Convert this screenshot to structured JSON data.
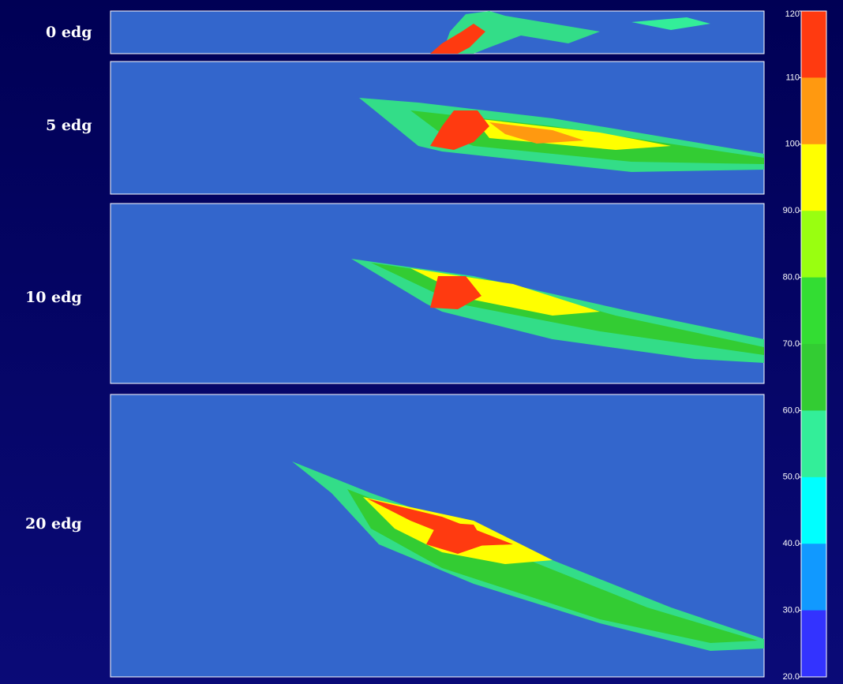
{
  "panels": [
    {
      "label": "0 edg"
    },
    {
      "label": "5 edg"
    },
    {
      "label": "10 edg"
    },
    {
      "label": "20 edg"
    }
  ],
  "colorbar": {
    "ticks": [
      {
        "value": 120,
        "label": "120"
      },
      {
        "value": 110,
        "label": "110"
      },
      {
        "value": 100,
        "label": "100"
      },
      {
        "value": 90,
        "label": "90.0"
      },
      {
        "value": 80,
        "label": "80.0"
      },
      {
        "value": 70,
        "label": "70.0"
      },
      {
        "value": 60,
        "label": "60.0"
      },
      {
        "value": 50,
        "label": "50.0"
      },
      {
        "value": 40,
        "label": "40.0"
      },
      {
        "value": 30,
        "label": "30.0"
      },
      {
        "value": 20,
        "label": "20.0"
      }
    ],
    "colors": [
      "#ff3a10",
      "#ff9910",
      "#ffff00",
      "#99ff10",
      "#33dd33",
      "#33cc33",
      "#33ee99",
      "#00ffff",
      "#1199ff",
      "#3333ff"
    ]
  }
}
